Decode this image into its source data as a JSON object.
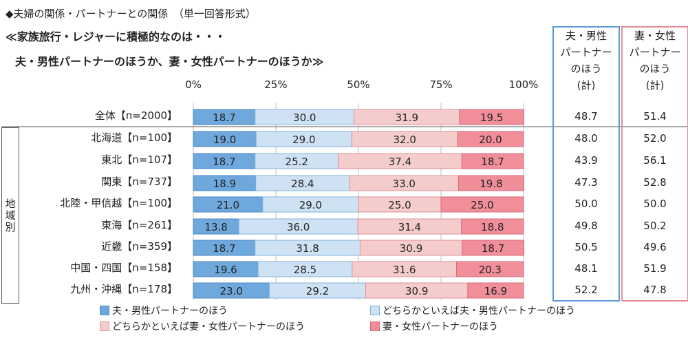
{
  "header": {
    "line1": "◆夫婦の関係・パートナーとの関係　（単一回答形式）",
    "line2": "≪家族旅行・レジャーに積極的なのは・・・",
    "line3": "夫・男性パートナーのほうか、妻・女性パートナーのほうか≫"
  },
  "region_label": "地域別",
  "summary_headers": {
    "husband": "夫・男性\nパートナー\nのほう\n(計)",
    "wife": "妻・女性\nパートナー\nのほう\n(計)"
  },
  "colors": {
    "husband": "#6fa8dc",
    "lean_husband": "#cfe2f3",
    "lean_wife": "#f4cccc",
    "wife": "#f08f9a",
    "husband_box_border": "#5b9bd5",
    "wife_box_border": "#e78a96"
  },
  "chart_data": {
    "type": "bar",
    "orientation": "horizontal",
    "stacked": true,
    "title": "≪家族旅行・レジャーに積極的なのは・・・夫・男性パートナーのほうか、妻・女性パートナーのほうか≫",
    "xlim": [
      0,
      100
    ],
    "ticks": [
      "0%",
      "25%",
      "50%",
      "75%",
      "100%"
    ],
    "categories": [
      "全体【n=2000】",
      "北海道【n=100】",
      "東北【n=107】",
      "関東【n=737】",
      "北陸・甲信越【n=100】",
      "東海【n=261】",
      "近畿【n=359】",
      "中国・四国【n=158】",
      "九州・沖縄【n=178】"
    ],
    "series": [
      {
        "name": "夫・男性パートナーのほう",
        "values": [
          18.7,
          19.0,
          18.7,
          18.9,
          21.0,
          13.8,
          18.7,
          19.6,
          23.0
        ]
      },
      {
        "name": "どちらかといえば夫・男性パートナーのほう",
        "values": [
          30.0,
          29.0,
          25.2,
          28.4,
          29.0,
          36.0,
          31.8,
          28.5,
          29.2
        ]
      },
      {
        "name": "どちらかといえば妻・女性パートナーのほう",
        "values": [
          31.9,
          32.0,
          37.4,
          33.0,
          25.0,
          31.4,
          30.9,
          31.6,
          30.9
        ]
      },
      {
        "name": "妻・女性パートナーのほう",
        "values": [
          19.5,
          20.0,
          18.7,
          19.8,
          25.0,
          18.8,
          18.7,
          20.3,
          16.9
        ]
      }
    ],
    "husband_total": [
      48.7,
      48.0,
      43.9,
      47.3,
      50.0,
      49.8,
      50.5,
      48.1,
      52.2
    ],
    "wife_total": [
      51.4,
      52.0,
      56.1,
      52.8,
      50.0,
      50.2,
      49.6,
      51.9,
      47.8
    ],
    "legend": [
      "夫・男性パートナーのほう",
      "どちらかといえば夫・男性パートナーのほう",
      "どちらかといえば妻・女性パートナーのほう",
      "妻・女性パートナーのほう"
    ],
    "legend_position": "bottom"
  }
}
